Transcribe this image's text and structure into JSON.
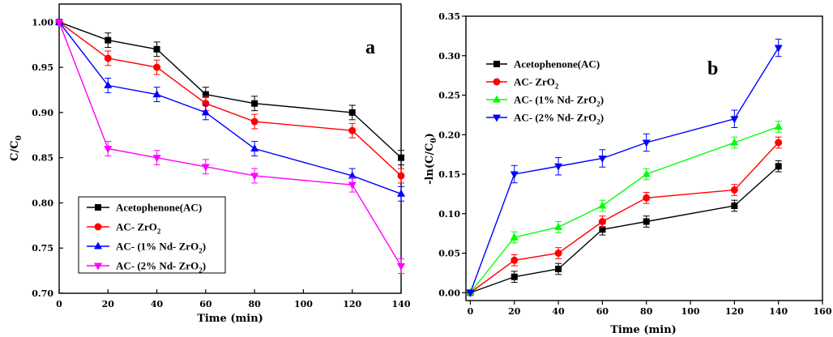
{
  "chart_data": [
    {
      "type": "line",
      "panel_label": "a",
      "xlabel": "Time (min)",
      "ylabel": "C/C",
      "ylabel_sub": "0",
      "x": [
        0,
        20,
        40,
        60,
        80,
        120,
        140
      ],
      "xlim": [
        0,
        140
      ],
      "ylim": [
        0.7,
        1.02
      ],
      "xticks": [
        0,
        20,
        40,
        60,
        80,
        100,
        120,
        140
      ],
      "yticks": [
        0.7,
        0.75,
        0.8,
        0.85,
        0.9,
        0.95,
        1.0
      ],
      "ytick_decimals": 2,
      "legend_position": "bottom-left",
      "series": [
        {
          "name": "Acetophenone(AC)",
          "legend_main": "Acetophenone(AC)",
          "legend_sub": "",
          "legend_tail": "",
          "color": "#000000",
          "marker": "square",
          "values": [
            1.0,
            0.98,
            0.97,
            0.92,
            0.91,
            0.9,
            0.85
          ],
          "error": 0.008
        },
        {
          "name": "AC- ZrO2",
          "legend_main": "AC- ZrO",
          "legend_sub": "2",
          "legend_tail": "",
          "color": "#ff0000",
          "marker": "circle",
          "values": [
            1.0,
            0.96,
            0.95,
            0.91,
            0.89,
            0.88,
            0.83
          ],
          "error": 0.008
        },
        {
          "name": "AC- (1% Nd- ZrO2)",
          "legend_main": "AC- (1% Nd- ZrO",
          "legend_sub": "2",
          "legend_tail": ")",
          "color": "#0000ff",
          "marker": "triangle-up",
          "values": [
            1.0,
            0.93,
            0.92,
            0.9,
            0.86,
            0.83,
            0.81
          ],
          "error": 0.008
        },
        {
          "name": "AC- (2% Nd- ZrO2)",
          "legend_main": "AC- (2% Nd- ZrO",
          "legend_sub": "2",
          "legend_tail": ")",
          "color": "#ff00ff",
          "marker": "triangle-down",
          "values": [
            1.0,
            0.86,
            0.85,
            0.84,
            0.83,
            0.82,
            0.73
          ],
          "error": 0.008
        }
      ]
    },
    {
      "type": "line",
      "panel_label": "b",
      "xlabel": "Time (min)",
      "ylabel": "-ln(C/C",
      "ylabel_sub": "0",
      "ylabel_tail": ")",
      "x": [
        0,
        20,
        40,
        60,
        80,
        120,
        140
      ],
      "xlim": [
        -2,
        160
      ],
      "ylim": [
        -0.01,
        0.35
      ],
      "xticks": [
        0,
        20,
        40,
        60,
        80,
        100,
        120,
        140,
        160
      ],
      "yticks": [
        0.0,
        0.05,
        0.1,
        0.15,
        0.2,
        0.25,
        0.3,
        0.35
      ],
      "ytick_decimals": 2,
      "legend_position": "top-left",
      "series": [
        {
          "name": "Acetophenone(AC)",
          "legend_main": "Acetophenone(AC)",
          "legend_sub": "",
          "legend_tail": "",
          "color": "#000000",
          "marker": "square",
          "values": [
            0.0,
            0.02,
            0.03,
            0.08,
            0.09,
            0.11,
            0.16
          ],
          "error": 0.007
        },
        {
          "name": "AC- ZrO2",
          "legend_main": "AC- ZrO",
          "legend_sub": "2",
          "legend_tail": "",
          "color": "#ff0000",
          "marker": "circle",
          "values": [
            0.0,
            0.041,
            0.05,
            0.09,
            0.12,
            0.13,
            0.19
          ],
          "error": 0.007
        },
        {
          "name": "AC- (1% Nd- ZrO2)",
          "legend_main": "AC- (1% Nd- ZrO",
          "legend_sub": "2",
          "legend_tail": ")",
          "color": "#00ff00",
          "marker": "triangle-up",
          "values": [
            0.0,
            0.07,
            0.083,
            0.11,
            0.15,
            0.19,
            0.21
          ],
          "error": 0.007
        },
        {
          "name": "AC- (2% Nd- ZrO2)",
          "legend_main": "AC- (2% Nd- ZrO",
          "legend_sub": "2",
          "legend_tail": ")",
          "color": "#0000ff",
          "marker": "triangle-down",
          "values": [
            0.0,
            0.15,
            0.16,
            0.17,
            0.19,
            0.22,
            0.31
          ],
          "error": 0.011
        }
      ]
    }
  ]
}
